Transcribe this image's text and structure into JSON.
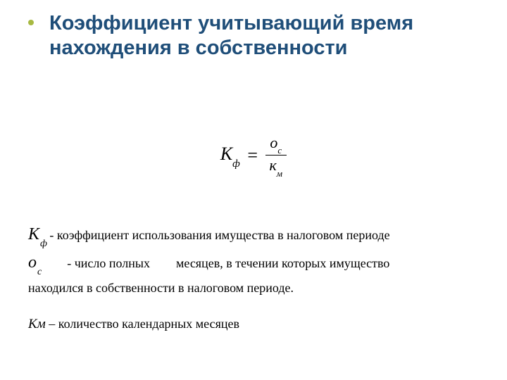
{
  "colors": {
    "title": "#1f4e79",
    "bullet": "#a7b942",
    "text": "#000000",
    "background": "#ffffff"
  },
  "fontsize": {
    "title": 29,
    "body": 18,
    "symbol": 24,
    "formula": 26
  },
  "title": "Коэффициент учитывающий время нахождения в собственности",
  "formula": {
    "lhs_base": "К",
    "lhs_sub": "ф",
    "eq": "=",
    "num_base": "о",
    "num_sub": "с",
    "den_base": "к",
    "den_sub": "м"
  },
  "defs": {
    "kf_base": "К",
    "kf_sub": "ф",
    "kf_text": " - коэффициент использования имущества в налоговом периоде",
    "oc_base": "о",
    "oc_sub": "с",
    "oc_text1": "-  число полных",
    "oc_text2": "месяцев, в течении которых имущество",
    "oc_cont": "находился в собственности  в налоговом периоде.",
    "km_sym": "Км",
    "km_text": " – количество календарных месяцев"
  }
}
